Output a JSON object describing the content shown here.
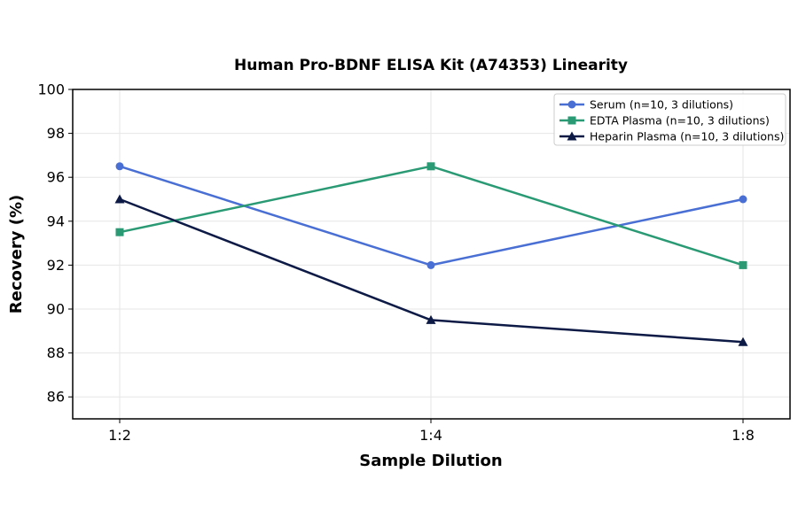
{
  "chart_data": {
    "type": "line",
    "title": "Human Pro-BDNF ELISA Kit (A74353) Linearity",
    "xlabel": "Sample Dilution",
    "ylabel": "Recovery (%)",
    "categories": [
      "1:2",
      "1:4",
      "1:8"
    ],
    "ylim": [
      85,
      100
    ],
    "yticks": [
      86,
      88,
      90,
      92,
      94,
      96,
      98,
      100
    ],
    "grid": true,
    "legend_position": "top-right",
    "series": [
      {
        "name": "Serum (n=10, 3 dilutions)",
        "values": [
          96.5,
          92.0,
          95.0
        ],
        "color": "#4a6fd4",
        "marker": "circle"
      },
      {
        "name": "EDTA Plasma (n=10, 3 dilutions)",
        "values": [
          93.5,
          96.5,
          92.0
        ],
        "color": "#2a9a75",
        "marker": "square"
      },
      {
        "name": "Heparin Plasma (n=10, 3 dilutions)",
        "values": [
          95.0,
          89.5,
          88.5
        ],
        "color": "#0d1a45",
        "marker": "triangle"
      }
    ]
  }
}
